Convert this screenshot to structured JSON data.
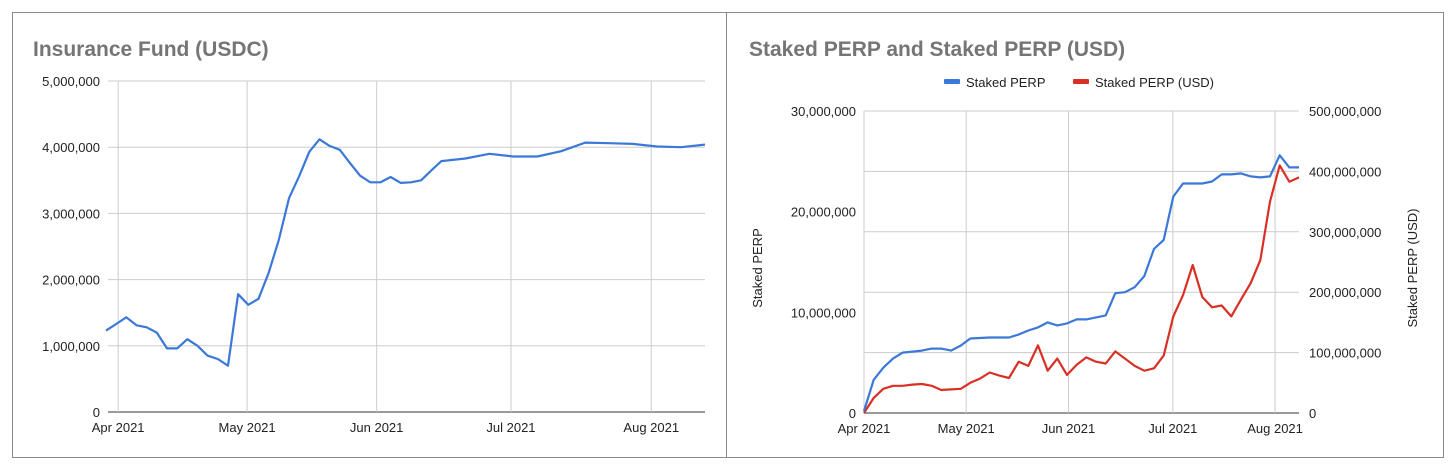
{
  "chart_data": [
    {
      "type": "line",
      "title": "Insurance Fund (USDC)",
      "xlabel": "",
      "ylabel": "",
      "x_ticks": [
        "Apr 2021",
        "May 2021",
        "Jun 2021",
        "Jul 2021",
        "Aug 2021"
      ],
      "y_ticks": [
        "0",
        "1,000,000",
        "2,000,000",
        "3,000,000",
        "4,000,000",
        "5,000,000"
      ],
      "ylim": [
        0,
        5000000
      ],
      "xlim": [
        0,
        33
      ],
      "grid": true,
      "colors": {
        "line": "#3b78d8"
      },
      "series": [
        {
          "name": "",
          "x": [
            0,
            1,
            2,
            3,
            4,
            5,
            6,
            7,
            8,
            9,
            10,
            11,
            12,
            13,
            14,
            15,
            16,
            17,
            18,
            19,
            20,
            21,
            22,
            23,
            24,
            25,
            26,
            27,
            28,
            29,
            30,
            31,
            32,
            33
          ],
          "values": [
            1230000,
            1330000,
            1430000,
            1310000,
            1280000,
            1200000,
            960000,
            960000,
            1100000,
            1000000,
            850000,
            800000,
            700000,
            1780000,
            1620000,
            1710000,
            2100000,
            2600000,
            3230000,
            3560000,
            3930000,
            4120000,
            4020000,
            3960000,
            3760000,
            3570000,
            3470000,
            3470000,
            3550000,
            3460000,
            3470000,
            3500000,
            3650000,
            3790000
          ]
        }
      ]
    },
    {
      "type": "line",
      "title": "Staked PERP and Staked PERP (USD)",
      "xlabel": "",
      "ylabel": "Staked PERP",
      "ylabel_right": "Staked PERP (USD)",
      "x_ticks": [
        "Apr 2021",
        "May 2021",
        "Jun 2021",
        "Jul 2021",
        "Aug 2021"
      ],
      "y_ticks": [
        "0",
        "10,000,000",
        "20,000,000",
        "30,000,000"
      ],
      "y_ticks_right": [
        "0",
        "100,000,000",
        "200,000,000",
        "300,000,000",
        "400,000,000",
        "500,000,000"
      ],
      "ylim": [
        0,
        30000000
      ],
      "ylim_right": [
        0,
        500000000
      ],
      "grid": true,
      "legend": "top",
      "series": [
        {
          "name": "Staked PERP",
          "color": "#3b78d8",
          "axis": "left",
          "values": [
            200000,
            3300000,
            4500000,
            5400000,
            6000000,
            6100000,
            6200000,
            6400000,
            6400000,
            6200000,
            6700000,
            7400000,
            7450000,
            7500000,
            7500000,
            7500000,
            7800000,
            8200000,
            8500000,
            9000000,
            8700000,
            8900000,
            9300000,
            9300000,
            9500000,
            9700000,
            11900000,
            12000000,
            12500000,
            13600000,
            16300000,
            17200000,
            21500000,
            22800000,
            22800000,
            22800000,
            23000000,
            23700000,
            23700000,
            23800000,
            23500000,
            23400000,
            23500000,
            25600000,
            24400000,
            24400000
          ]
        },
        {
          "name": "Staked PERP (USD)",
          "color": "#d93025",
          "axis": "right",
          "values": [
            0,
            25000000,
            40000000,
            45000000,
            45000000,
            47000000,
            48000000,
            45000000,
            38000000,
            39000000,
            40000000,
            50000000,
            57000000,
            67000000,
            62000000,
            58000000,
            85000000,
            78000000,
            112000000,
            70000000,
            90000000,
            63000000,
            80000000,
            92000000,
            85000000,
            82000000,
            102000000,
            90000000,
            78000000,
            70000000,
            74000000,
            95000000,
            160000000,
            195000000,
            245000000,
            192000000,
            175000000,
            178000000,
            160000000,
            188000000,
            215000000,
            253000000,
            350000000,
            410000000,
            383000000,
            390000000
          ]
        }
      ]
    }
  ]
}
